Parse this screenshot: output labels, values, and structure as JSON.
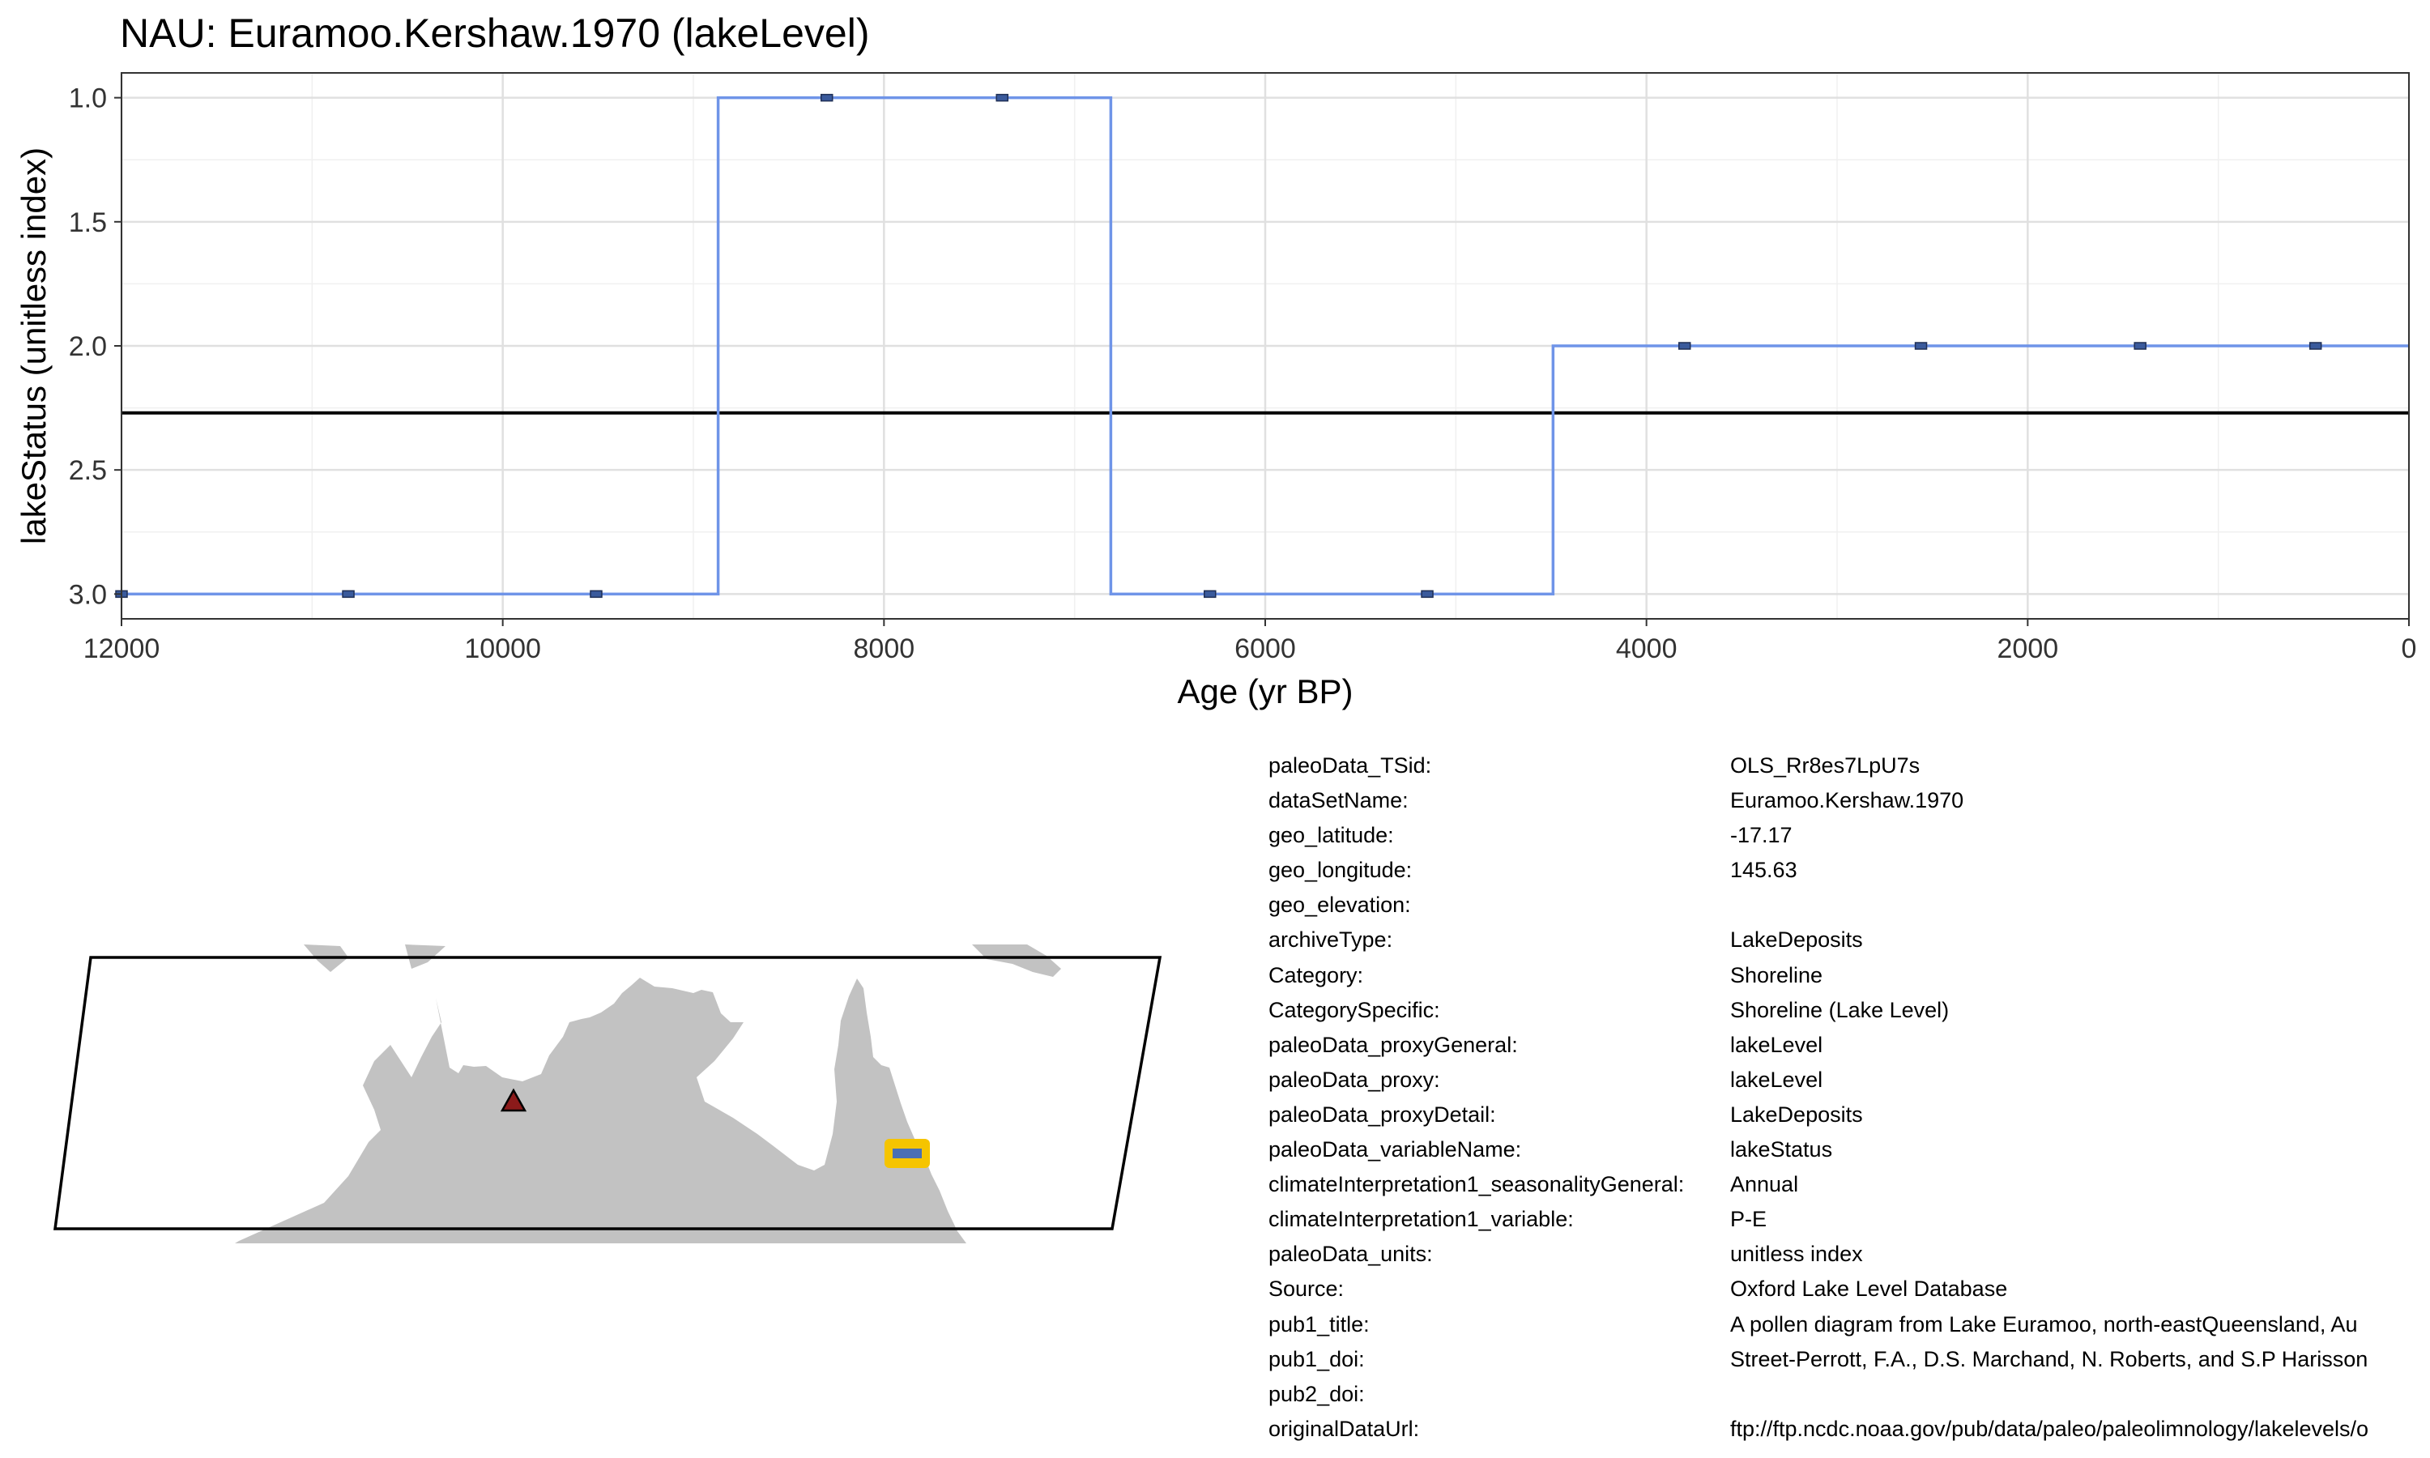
{
  "chart_data": {
    "type": "line",
    "title": "NAU: Euramoo.Kershaw.1970 (lakeLevel)",
    "xlabel": "Age (yr BP)",
    "ylabel": "lakeStatus (unitless index)",
    "xlim": [
      12000,
      0
    ],
    "ylim": [
      3.1,
      0.9
    ],
    "x_reversed": true,
    "y_reversed": true,
    "x_ticks": [
      12000,
      10000,
      8000,
      6000,
      4000,
      2000,
      0
    ],
    "x_minor_ticks": [
      11000,
      9000,
      7000,
      5000,
      3000,
      1000
    ],
    "y_ticks": [
      1.0,
      1.5,
      2.0,
      2.5,
      3.0
    ],
    "y_minor_ticks": [
      1.25,
      1.75,
      2.25,
      2.75
    ],
    "y_tick_labels": [
      "1.0",
      "1.5",
      "2.0",
      "2.5",
      "3.0"
    ],
    "grid": true,
    "step_series": {
      "color": "#6f94e8",
      "x": [
        12000,
        8870,
        8870,
        6810,
        6810,
        4490,
        4490,
        0
      ],
      "y": [
        3,
        3,
        1,
        1,
        3,
        3,
        2,
        2
      ]
    },
    "points": {
      "color": "#3a5a9c",
      "x": [
        12000,
        10810,
        9510,
        8300,
        7380,
        6290,
        5150,
        3800,
        2560,
        1410,
        490
      ],
      "y": [
        3,
        3,
        3,
        1,
        1,
        3,
        3,
        2,
        2,
        2,
        2
      ]
    },
    "mean_line": {
      "y": 2.27,
      "color": "#000000"
    }
  },
  "map": {
    "land_color": "#c2c2c2",
    "site_marker": {
      "shape": "triangle",
      "color": "#8b1a1a"
    },
    "highlight_marker": {
      "fill": "#f5c400",
      "bar": "#4a6fb5"
    }
  },
  "metadata": [
    {
      "key": "paleoData_TSid:",
      "value": "OLS_Rr8es7LpU7s"
    },
    {
      "key": "dataSetName:",
      "value": "Euramoo.Kershaw.1970"
    },
    {
      "key": "geo_latitude:",
      "value": "-17.17"
    },
    {
      "key": "geo_longitude:",
      "value": "145.63"
    },
    {
      "key": "geo_elevation:",
      "value": ""
    },
    {
      "key": "archiveType:",
      "value": "LakeDeposits"
    },
    {
      "key": "Category:",
      "value": "Shoreline"
    },
    {
      "key": "CategorySpecific:",
      "value": "Shoreline (Lake Level)"
    },
    {
      "key": "paleoData_proxyGeneral:",
      "value": "lakeLevel"
    },
    {
      "key": "paleoData_proxy:",
      "value": "lakeLevel"
    },
    {
      "key": "paleoData_proxyDetail:",
      "value": "LakeDeposits"
    },
    {
      "key": "paleoData_variableName:",
      "value": "lakeStatus"
    },
    {
      "key": "climateInterpretation1_seasonalityGeneral:",
      "value": "Annual"
    },
    {
      "key": "climateInterpretation1_variable:",
      "value": "P-E"
    },
    {
      "key": "paleoData_units:",
      "value": "unitless index"
    },
    {
      "key": "Source:",
      "value": "Oxford Lake Level Database"
    },
    {
      "key": "pub1_title:",
      "value": "A pollen diagram from Lake Euramoo, north-eastQueensland,  Au"
    },
    {
      "key": "pub1_doi:",
      "value": "Street-Perrott, F.A., D.S. Marchand, N. Roberts, and S.P Harisson"
    },
    {
      "key": "pub2_doi:",
      "value": ""
    },
    {
      "key": "originalDataUrl:",
      "value": "ftp://ftp.ncdc.noaa.gov/pub/data/paleo/paleolimnology/lakelevels/o"
    }
  ]
}
